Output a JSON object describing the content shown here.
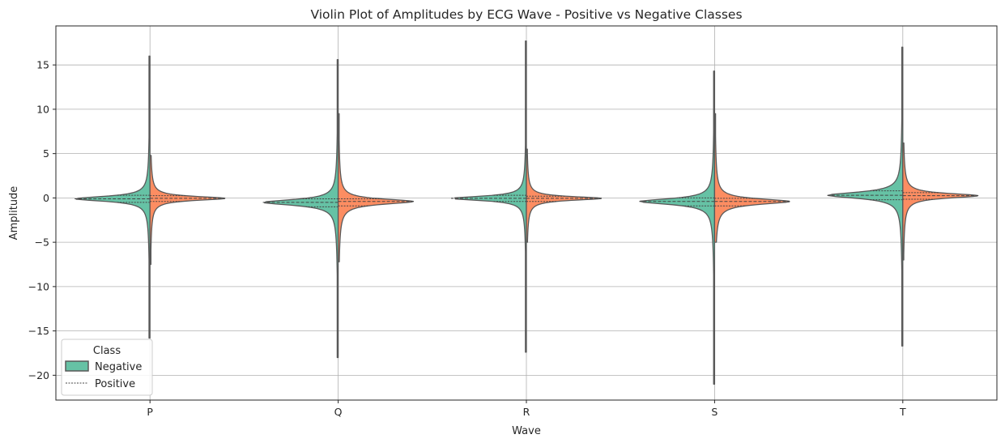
{
  "chart_data": {
    "type": "violin",
    "title": "Violin Plot of Amplitudes by ECG Wave - Positive vs Negative Classes",
    "xlabel": "Wave",
    "ylabel": "Amplitude",
    "categories": [
      "P",
      "Q",
      "R",
      "S",
      "T"
    ],
    "ylim": [
      -22.8,
      19.4
    ],
    "yticks": [
      -20,
      -15,
      -10,
      -5,
      0,
      5,
      10,
      15
    ],
    "ytick_labels": [
      "−20",
      "−15",
      "−10",
      "−5",
      "0",
      "5",
      "10",
      "15"
    ],
    "grid": true,
    "split": true,
    "legend": {
      "title": "Class",
      "placement": "lower-left",
      "entries": [
        "Negative",
        "Positive"
      ]
    },
    "colors": {
      "Negative": "#66c2a5",
      "Positive": "#fc8d62",
      "outline": "#595959",
      "grid": "#b0b0b0"
    },
    "series": [
      {
        "name": "Negative",
        "side": "left",
        "min": [
          -15.8,
          -18.0,
          -17.4,
          -21.0,
          -16.7
        ],
        "max": [
          16.0,
          15.6,
          17.7,
          14.3,
          17.0
        ],
        "quartiles": [
          [
            -0.5,
            -0.1,
            0.3
          ],
          [
            -1.0,
            -0.5,
            -0.1
          ],
          [
            -0.4,
            -0.05,
            0.3
          ],
          [
            -0.9,
            -0.4,
            0.0
          ],
          [
            -0.2,
            0.3,
            0.8
          ]
        ]
      },
      {
        "name": "Positive",
        "side": "right",
        "min": [
          -7.5,
          -7.2,
          -5.0,
          -5.0,
          -7.0
        ],
        "max": [
          4.8,
          9.5,
          5.5,
          9.5,
          6.2
        ],
        "quartiles": [
          [
            -0.4,
            -0.05,
            0.25
          ],
          [
            -0.9,
            -0.4,
            -0.1
          ],
          [
            -0.4,
            -0.05,
            0.2
          ],
          [
            -0.9,
            -0.4,
            -0.05
          ],
          [
            -0.15,
            0.25,
            0.6
          ]
        ]
      }
    ]
  }
}
